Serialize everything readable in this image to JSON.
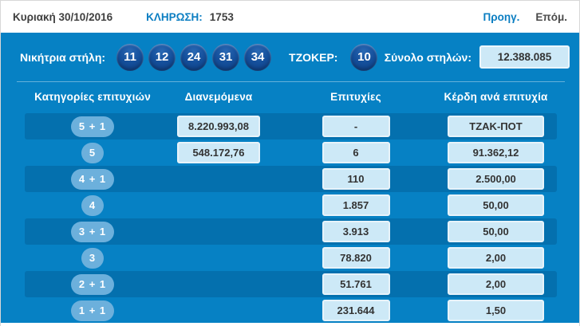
{
  "top_bar": {
    "date": "Κυριακή 30/10/2016",
    "draw_label": "ΚΛΗΡΩΣΗ:",
    "draw_number": "1753",
    "prev_label": "Προηγ.",
    "next_label": "Επόμ."
  },
  "panel": {
    "winning_label": "Νικήτρια στήλη:",
    "numbers": [
      "11",
      "12",
      "24",
      "31",
      "34"
    ],
    "joker_label": "ΤΖΟΚΕΡ:",
    "joker_number": "10",
    "total_label": "Σύνολο στηλών:",
    "total_value": "12.388.085"
  },
  "table": {
    "headers": [
      "Κατηγορίες επιτυχιών",
      "Διανεμόμενα",
      "Επιτυχίες",
      "Κέρδη ανά επιτυχία"
    ],
    "rows": [
      {
        "category": "5 + 1",
        "distributed": "8.220.993,08",
        "winners": "-",
        "prize": "ΤΖΑΚ-ΠΟΤ"
      },
      {
        "category": "5",
        "distributed": "548.172,76",
        "winners": "6",
        "prize": "91.362,12"
      },
      {
        "category": "4 + 1",
        "winners": "110",
        "prize": "2.500,00"
      },
      {
        "category": "4",
        "winners": "1.857",
        "prize": "50,00"
      },
      {
        "category": "3 + 1",
        "winners": "3.913",
        "prize": "50,00"
      },
      {
        "category": "3",
        "winners": "78.820",
        "prize": "2,00"
      },
      {
        "category": "2 + 1",
        "winners": "51.761",
        "prize": "2,00"
      },
      {
        "category": "1 + 1",
        "winners": "231.644",
        "prize": "1,50"
      }
    ]
  },
  "colors": {
    "panel_blue": "#0681c4",
    "row_band_blue": "#0470ae",
    "ball_blue": "#15509c",
    "badge_blue": "#6cb0dc",
    "value_box_fill": "#cde9f7",
    "link_blue": "#0b7ec2",
    "text_dark": "#3f3f3f"
  }
}
